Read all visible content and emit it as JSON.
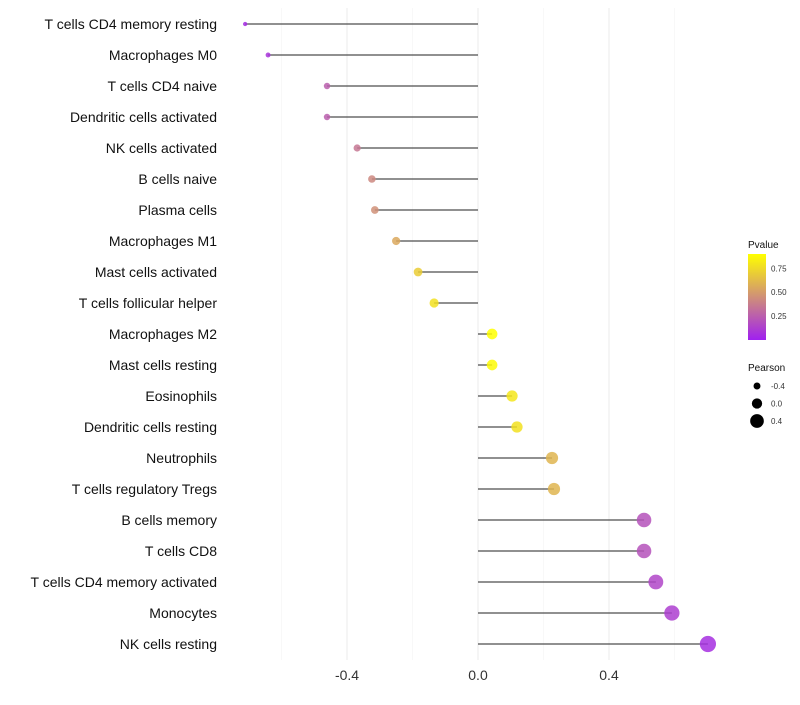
{
  "chart_data": {
    "type": "lollipop",
    "xlabel": "",
    "ylabel": "",
    "xlim": [
      -0.78,
      0.78
    ],
    "xticks": [
      "-0.4",
      "0.0",
      "0.4"
    ],
    "xtick_values": [
      -0.4,
      0.0,
      0.4
    ],
    "categories": [
      "T cells CD4 memory resting",
      "Macrophages M0",
      "T cells CD4 naive",
      "Dendritic cells activated",
      "NK cells activated",
      "B cells naive",
      "Plasma cells",
      "Macrophages M1",
      "Mast cells activated",
      "T cells follicular helper",
      "Macrophages M2",
      "Mast cells resting",
      "Eosinophils",
      "Dendritic cells resting",
      "Neutrophils",
      "T cells regulatory  Tregs",
      "B cells memory",
      "T cells CD8",
      "T cells CD4 memory activated",
      "Monocytes",
      "NK cells resting"
    ],
    "pearson": [
      -0.711,
      -0.641,
      -0.461,
      -0.461,
      -0.369,
      -0.324,
      -0.315,
      -0.25,
      -0.183,
      -0.134,
      0.043,
      0.043,
      0.104,
      0.119,
      0.226,
      0.232,
      0.507,
      0.507,
      0.543,
      0.592,
      0.702
    ],
    "pvalue": [
      0.05,
      0.08,
      0.25,
      0.25,
      0.35,
      0.42,
      0.45,
      0.55,
      0.7,
      0.78,
      0.9,
      0.88,
      0.8,
      0.78,
      0.6,
      0.6,
      0.2,
      0.2,
      0.15,
      0.12,
      0.06
    ],
    "legend": {
      "color_title": "Pvalue",
      "color_ticks": [
        "0.25",
        "0.50",
        "0.75"
      ],
      "color_tick_values": [
        0.25,
        0.5,
        0.75
      ],
      "color_low": "#A020F0",
      "color_high": "#FFFF00",
      "size_title": "Pearson",
      "size_labels": [
        "-0.4",
        "0.0",
        "0.4"
      ],
      "size_values": [
        -0.4,
        0.0,
        0.4
      ],
      "placement": "right"
    }
  }
}
